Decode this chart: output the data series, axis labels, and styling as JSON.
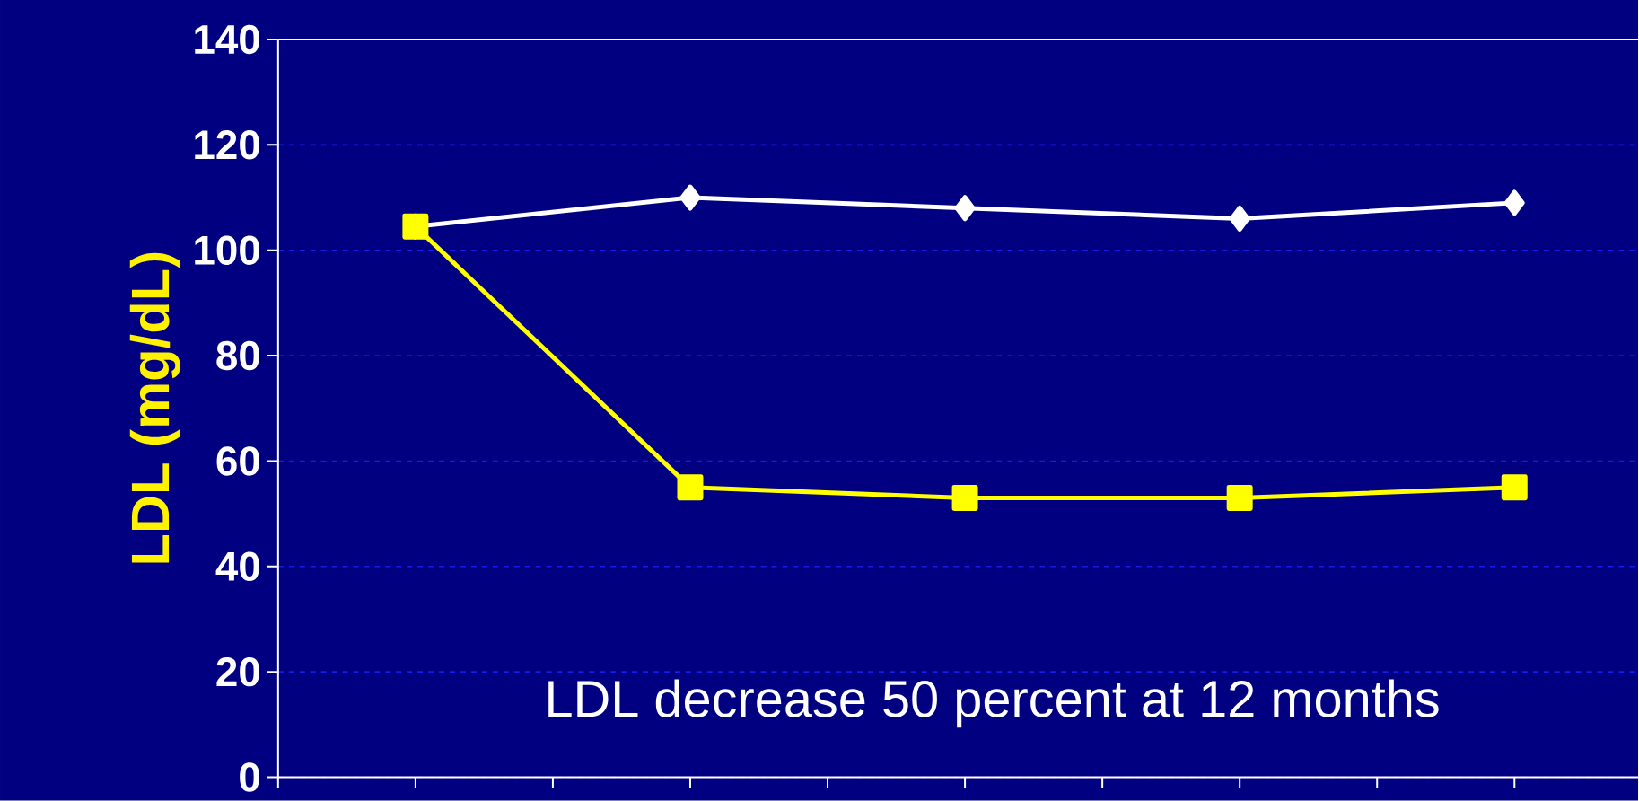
{
  "chart_data": {
    "type": "line",
    "ylabel": "LDL  (mg/dL)",
    "categories": [
      null,
      null,
      null,
      null,
      null
    ],
    "series": [
      {
        "color": "#ffffff",
        "marker": "diamond",
        "values": [
          104.5,
          110,
          108,
          106,
          109
        ]
      },
      {
        "color": "#ffff00",
        "marker": "square",
        "values": [
          104.5,
          55,
          53,
          53,
          55
        ]
      }
    ],
    "ylim": [
      0,
      140
    ],
    "yticks": [
      0,
      20,
      40,
      60,
      80,
      100,
      120,
      140
    ],
    "grid": "y",
    "annotations": [
      "LDL decrease 50 percent at 12 months"
    ]
  }
}
